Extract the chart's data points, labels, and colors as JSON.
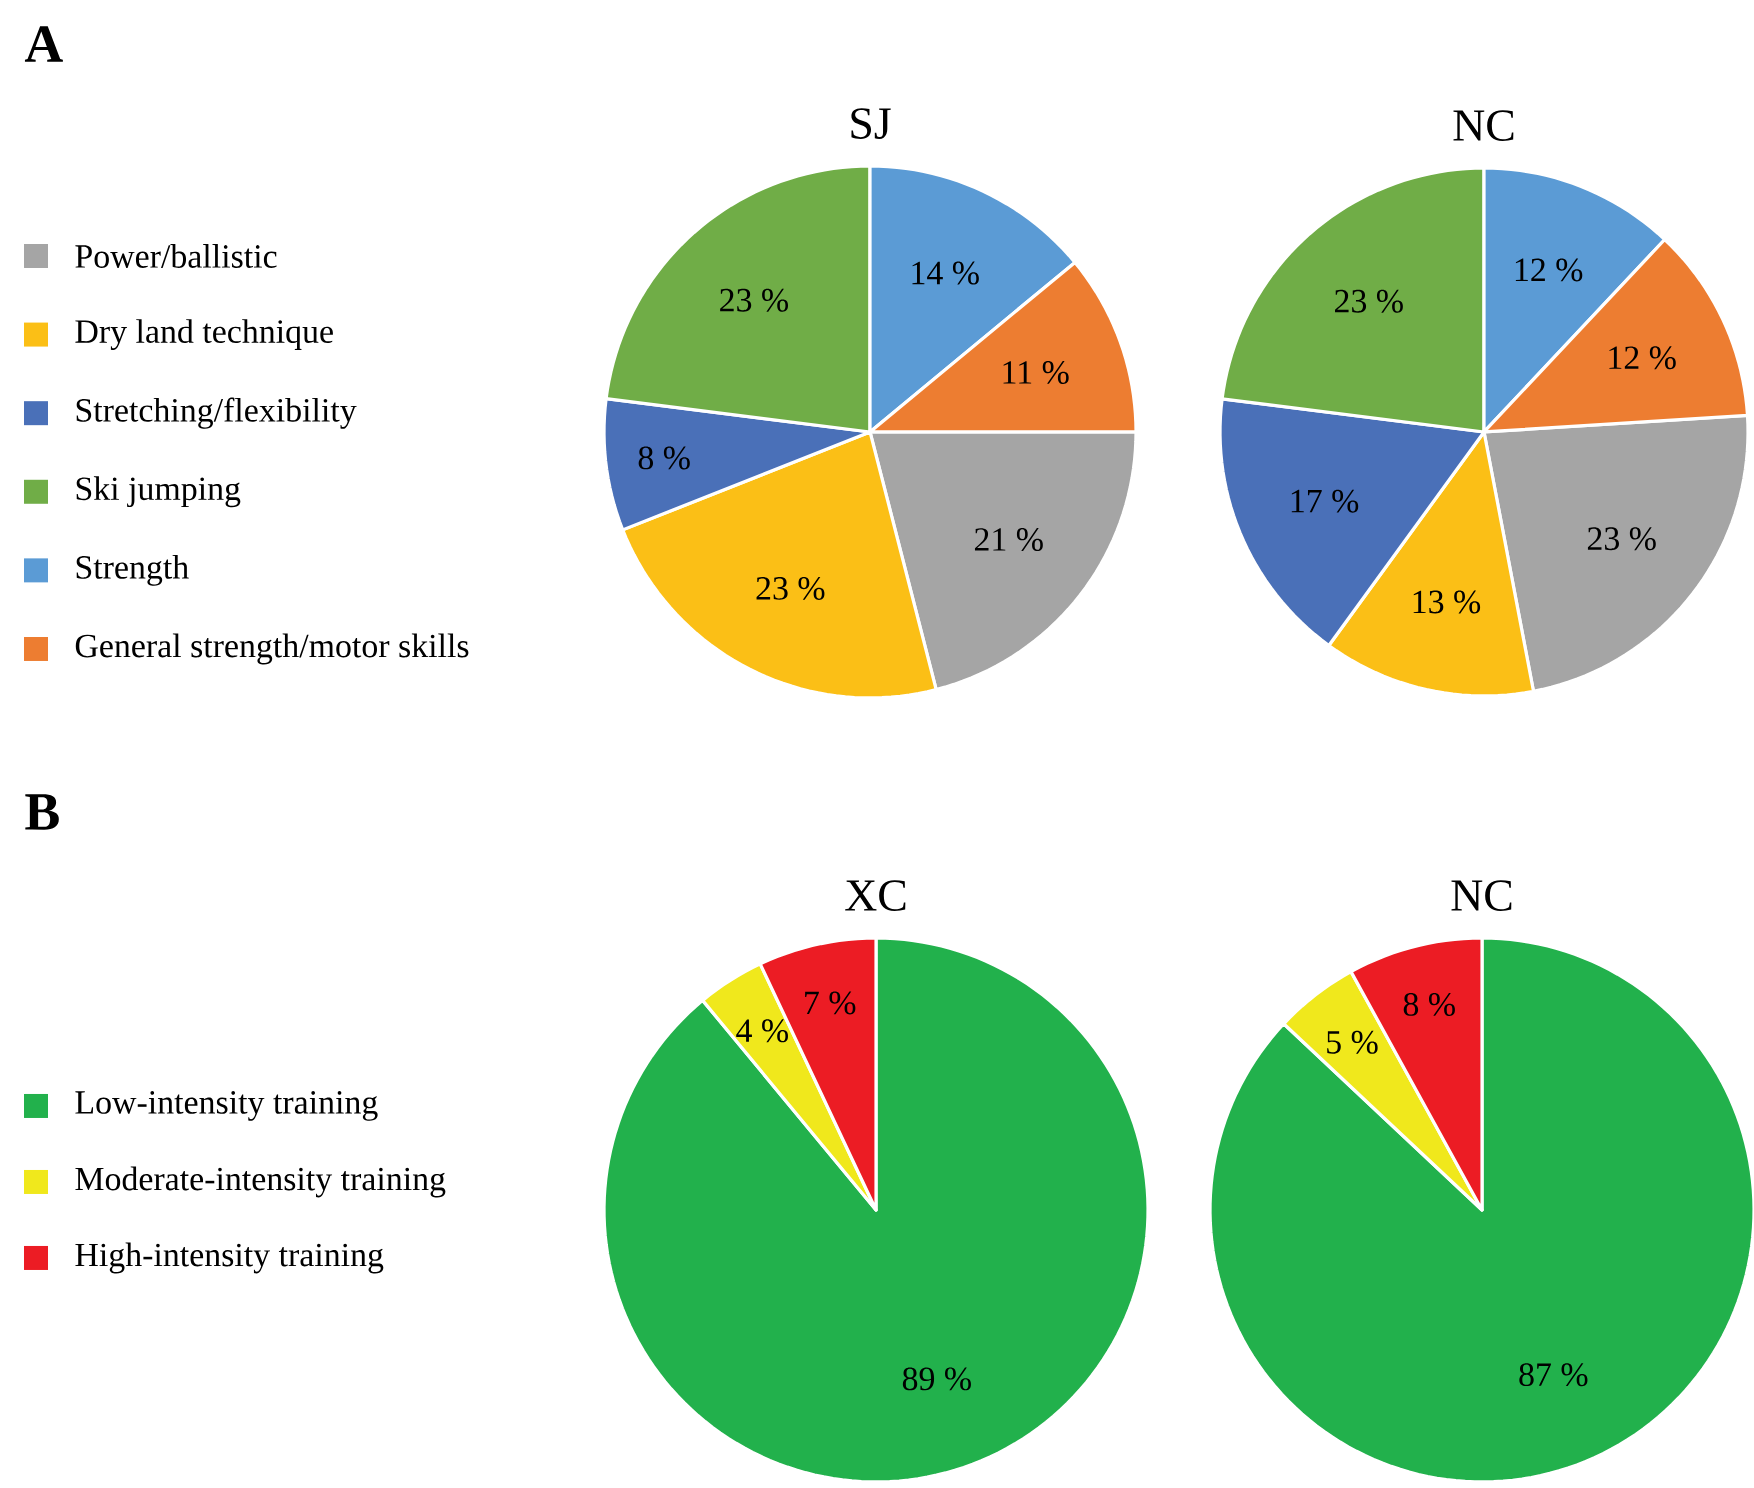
{
  "chart_data": [
    {
      "type": "pie",
      "title": "SJ",
      "annotations": [
        "A"
      ],
      "legend": "left",
      "categories": [
        "Power/ballistic",
        "Dry land technique",
        "Stretching/flexibility",
        "Ski jumping",
        "Strength",
        "General strength/motor skills"
      ],
      "values": [
        21,
        23,
        8,
        23,
        14,
        11
      ],
      "value_labels": [
        "21 %",
        "23 %",
        "8 %",
        "23 %",
        "14 %",
        "11 %"
      ],
      "colors": [
        "#a5a5a5",
        "#fbbf16",
        "#4a70b8",
        "#70ad47",
        "#5b9bd5",
        "#ed7d31"
      ]
    },
    {
      "type": "pie",
      "title": "NC",
      "categories": [
        null,
        null,
        null,
        null,
        null,
        null
      ],
      "values": [
        23,
        13,
        17,
        23,
        12,
        12
      ],
      "value_labels": [
        "23 %",
        "13 %",
        "17 %",
        "23 %",
        "12 %",
        "12 %"
      ],
      "colors": [
        "#a5a5a5",
        "#fbbf16",
        "#4a70b8",
        "#70ad47",
        "#5b9bd5",
        "#ed7d31"
      ]
    },
    {
      "type": "pie",
      "title": "XC",
      "annotations": [
        "B"
      ],
      "legend": "left",
      "categories": [
        "Low-intensity training",
        "Moderate-intensity training",
        "High-intensity training"
      ],
      "values": [
        89,
        4,
        7
      ],
      "value_labels": [
        "89 %",
        "4 %",
        "7 %"
      ],
      "colors": [
        "#22b14c",
        "#f0e81c",
        "#ec1c24"
      ]
    },
    {
      "type": "pie",
      "title": "NC",
      "categories": [
        null,
        null,
        null
      ],
      "values": [
        87,
        5,
        8
      ],
      "value_labels": [
        "87 %",
        "5 %",
        "8 %"
      ],
      "colors": [
        "#22b14c",
        "#f0e81c",
        "#ec1c24"
      ]
    }
  ]
}
